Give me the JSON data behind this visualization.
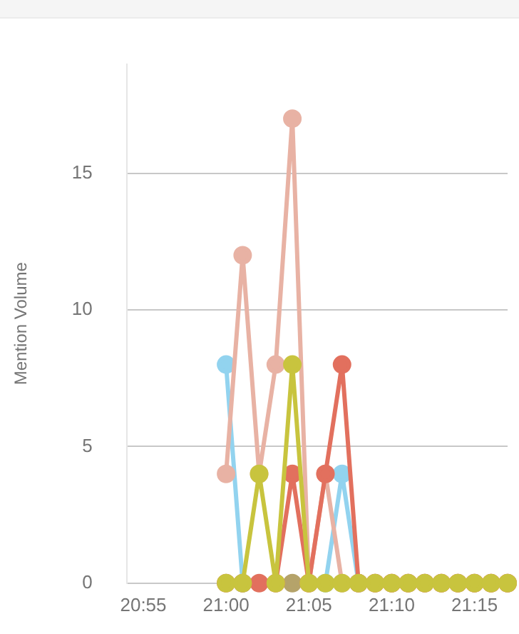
{
  "chart_data": {
    "type": "line",
    "ylabel": "Mention Volume",
    "x": [
      21,
      21.0167,
      21.0333,
      21.05,
      21.0667,
      21.0833,
      21.1,
      21.1167,
      21.1333,
      21.15,
      21.1667,
      21.1833,
      21.2,
      21.2167,
      21.2333,
      21.25,
      21.2667,
      21.2833
    ],
    "series": [
      {
        "color": "#c8c43e",
        "values": [
          0,
          0,
          4,
          0,
          8,
          0,
          0,
          0,
          0,
          0,
          0,
          0,
          0,
          0,
          0,
          0,
          0,
          0
        ]
      },
      {
        "color": "#e2705e",
        "values": [
          0,
          0,
          0,
          0,
          4,
          0,
          4,
          8,
          0,
          0,
          0,
          0,
          0,
          0,
          0,
          0,
          0,
          0
        ]
      },
      {
        "color": "#b5a36a",
        "values": [
          null,
          null,
          null,
          null,
          0,
          null,
          null,
          null,
          null,
          null,
          null,
          null,
          null,
          null,
          null,
          null,
          null,
          null
        ]
      },
      {
        "color": "#e8b2a4",
        "values": [
          4,
          12,
          4,
          8,
          17,
          0,
          4,
          0,
          0,
          0,
          0,
          0,
          0,
          0,
          0,
          0,
          0,
          0
        ]
      },
      {
        "color": "#92d3ef",
        "values": [
          8,
          0,
          null,
          null,
          null,
          null,
          0,
          4,
          0,
          null,
          null,
          null,
          null,
          null,
          null,
          null,
          null,
          null
        ]
      }
    ],
    "xlim": [
      20.9,
      21.2833
    ],
    "xticks": [
      {
        "value": 20.9167,
        "label": "20:55"
      },
      {
        "value": 21,
        "label": "21:00"
      },
      {
        "value": 21.0833,
        "label": "21:05"
      },
      {
        "value": 21.1667,
        "label": "21:10"
      },
      {
        "value": 21.25,
        "label": "21:15"
      }
    ],
    "ylim": [
      0,
      19
    ],
    "yticks": [
      0,
      5,
      10,
      15
    ],
    "grid": "y",
    "legend": false,
    "marker": "circle",
    "line_style": "solid"
  }
}
